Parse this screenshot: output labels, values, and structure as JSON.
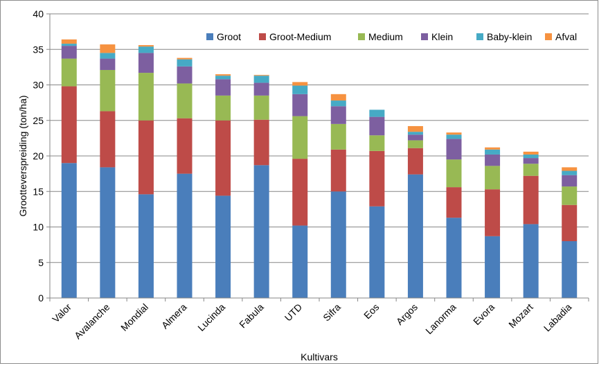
{
  "chart_data": {
    "type": "bar",
    "stacked": true,
    "title": "",
    "xlabel": "Kultivars",
    "ylabel": "Grootteverspreiding (ton/ha)",
    "ylim": [
      0,
      40
    ],
    "yticks": [
      0,
      5,
      10,
      15,
      20,
      25,
      30,
      35,
      40
    ],
    "grid": true,
    "legend_position": "top-right",
    "categories": [
      "Valor",
      "Avalanche",
      "Mondial",
      "Almera",
      "Lucinda",
      "Fabula",
      "UTD",
      "Sifra",
      "Eos",
      "Argos",
      "Lanorma",
      "Evora",
      "Mozart",
      "Labadia"
    ],
    "series": [
      {
        "name": "Groot",
        "color": "#4a7ebb",
        "values": [
          19.0,
          18.4,
          14.6,
          17.5,
          14.4,
          18.7,
          10.2,
          15.0,
          12.9,
          17.4,
          11.3,
          8.7,
          10.4,
          8.0
        ]
      },
      {
        "name": "Groot-Medium",
        "color": "#be4b48",
        "values": [
          10.8,
          7.9,
          10.4,
          7.8,
          10.6,
          6.4,
          9.4,
          5.9,
          7.8,
          3.7,
          4.3,
          6.6,
          6.8,
          5.1
        ]
      },
      {
        "name": "Medium",
        "color": "#98b954",
        "values": [
          3.9,
          5.8,
          6.7,
          4.9,
          3.5,
          3.4,
          6.0,
          3.6,
          2.2,
          1.1,
          3.9,
          3.3,
          1.7,
          2.6
        ]
      },
      {
        "name": "Klein",
        "color": "#7d5fa0",
        "values": [
          1.8,
          1.6,
          2.8,
          2.4,
          2.3,
          1.8,
          3.1,
          2.5,
          2.6,
          0.8,
          2.9,
          1.6,
          0.8,
          1.6
        ]
      },
      {
        "name": "Baby-klein",
        "color": "#46aac5",
        "values": [
          0.3,
          0.8,
          0.9,
          1.0,
          0.5,
          1.0,
          1.2,
          0.8,
          1.0,
          0.4,
          0.6,
          0.7,
          0.5,
          0.6
        ]
      },
      {
        "name": "Afval",
        "color": "#f69240",
        "values": [
          0.6,
          1.2,
          0.2,
          0.2,
          0.2,
          0.1,
          0.5,
          0.9,
          0.0,
          0.8,
          0.3,
          0.3,
          0.4,
          0.5
        ]
      }
    ]
  }
}
